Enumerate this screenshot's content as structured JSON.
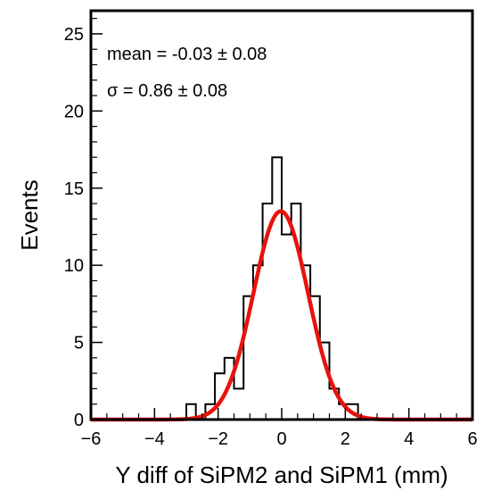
{
  "chart_data": {
    "type": "histogram",
    "xlabel": "Y diff of SiPM2 and SiPM1 (mm)",
    "ylabel": "Events",
    "xlim": [
      -6,
      6
    ],
    "ylim": [
      0,
      26.5
    ],
    "x_ticks": [
      -6,
      -4,
      -2,
      0,
      2,
      4,
      6
    ],
    "x_tick_labels": [
      "−6",
      "−4",
      "−2",
      "0",
      "2",
      "4",
      "6"
    ],
    "y_ticks": [
      0,
      5,
      10,
      15,
      20,
      25
    ],
    "y_tick_labels": [
      "0",
      "5",
      "10",
      "15",
      "20",
      "25"
    ],
    "grid": false,
    "annotations": [
      "mean = -0.03 ± 0.08",
      "σ = 0.86 ± 0.08"
    ],
    "histogram": {
      "bin_edges": [
        -3.0,
        -2.7,
        -2.4,
        -2.1,
        -1.8,
        -1.5,
        -1.2,
        -0.9,
        -0.6,
        -0.3,
        0.0,
        0.3,
        0.6,
        0.9,
        1.2,
        1.5,
        1.8,
        2.1,
        2.4,
        2.7
      ],
      "counts": [
        1,
        0,
        1,
        3,
        4,
        2,
        8,
        10,
        14,
        17,
        12,
        14,
        10,
        8,
        5,
        2,
        1,
        1,
        0
      ],
      "color": "#000000"
    },
    "fit": {
      "function": "gaussian",
      "amplitude": 13.5,
      "mean": -0.03,
      "sigma": 0.86,
      "color": "#e8120c"
    }
  }
}
